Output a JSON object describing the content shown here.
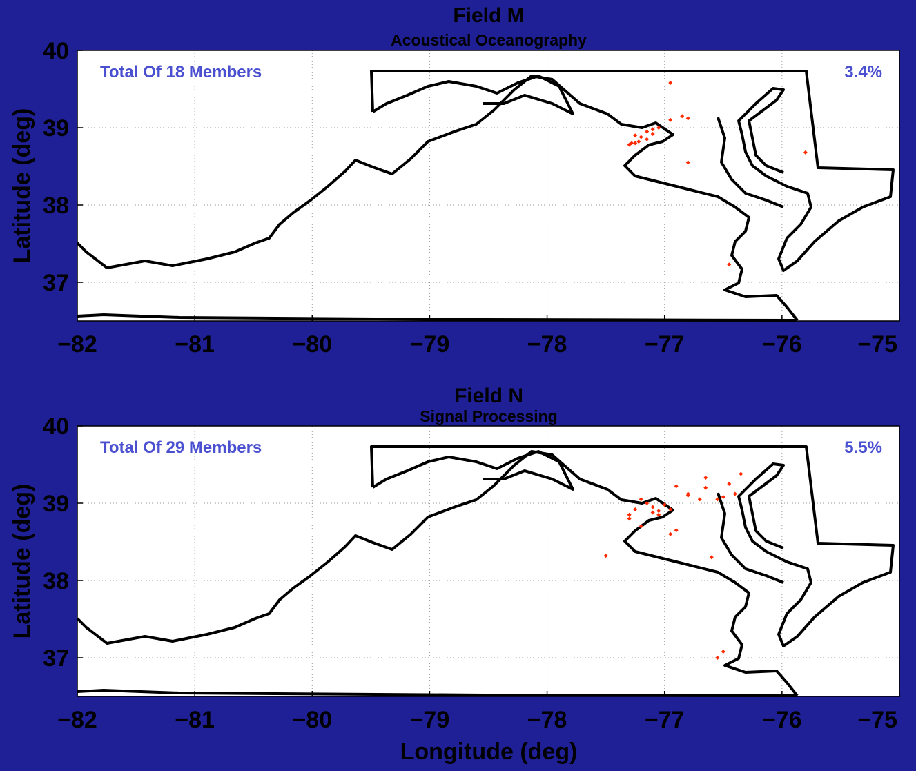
{
  "colors": {
    "page_background": "#1f1f96",
    "plot_background": "#ffffff",
    "outline": "#000000",
    "marker": "#ff2a00",
    "annotation": "#4a50d0",
    "grid": "#9a9a9a"
  },
  "figure": {
    "xlabel": "Longitude (deg)",
    "ylabel": "Latitude (deg)"
  },
  "chart_data": [
    {
      "type": "scatter",
      "title": "Field M",
      "subtitle": "Acoustical Oceanography",
      "xlabel": "",
      "ylabel": "Latitude (deg)",
      "xlim": [
        -82,
        -75
      ],
      "ylim": [
        36.5,
        40
      ],
      "xticks": [
        -82,
        -81,
        -80,
        -79,
        -78,
        -77,
        -76,
        -75
      ],
      "yticks": [
        37,
        38,
        39,
        40
      ],
      "grid": true,
      "annotations": {
        "left": "Total Of 18 Members",
        "right": "3.4%"
      },
      "series": [
        {
          "x": [
            -76.95,
            -76.95,
            -76.85,
            -76.8,
            -77.1,
            -77.1,
            -77.15,
            -77.2,
            -77.22,
            -77.25,
            -77.28,
            -77.3,
            -77.25,
            -77.15,
            -76.8,
            -76.45,
            -75.8,
            -77.05
          ],
          "y": [
            39.58,
            39.1,
            39.15,
            39.12,
            38.98,
            38.92,
            38.95,
            38.88,
            38.82,
            38.8,
            38.8,
            38.78,
            38.9,
            38.85,
            38.55,
            37.23,
            38.68,
            39.0
          ]
        }
      ]
    },
    {
      "type": "scatter",
      "title": "Field N",
      "subtitle": "Signal Processing",
      "xlabel": "Longitude (deg)",
      "ylabel": "Latitude (deg)",
      "xlim": [
        -82,
        -75
      ],
      "ylim": [
        36.5,
        40
      ],
      "xticks": [
        -82,
        -81,
        -80,
        -79,
        -78,
        -77,
        -76,
        -75
      ],
      "yticks": [
        37,
        38,
        39,
        40
      ],
      "grid": true,
      "annotations": {
        "left": "Total Of 29 Members",
        "right": "5.5%"
      },
      "series": [
        {
          "x": [
            -76.65,
            -76.55,
            -76.9,
            -76.8,
            -76.8,
            -76.65,
            -76.5,
            -76.4,
            -76.35,
            -77.2,
            -77.25,
            -77.3,
            -77.3,
            -77.2,
            -77.05,
            -77.1,
            -77.0,
            -76.95,
            -76.9,
            -76.6,
            -77.5,
            -76.55,
            -76.5,
            -77.15,
            -77.05,
            -76.95,
            -77.1,
            -76.45,
            -76.7
          ],
          "y": [
            39.33,
            39.05,
            39.22,
            39.12,
            39.1,
            39.2,
            39.08,
            39.12,
            39.38,
            39.05,
            38.92,
            38.85,
            38.8,
            38.7,
            38.9,
            38.95,
            38.98,
            38.92,
            38.65,
            38.3,
            38.32,
            37.0,
            37.08,
            39.0,
            38.85,
            38.6,
            38.88,
            39.25,
            39.05
          ]
        }
      ]
    }
  ]
}
